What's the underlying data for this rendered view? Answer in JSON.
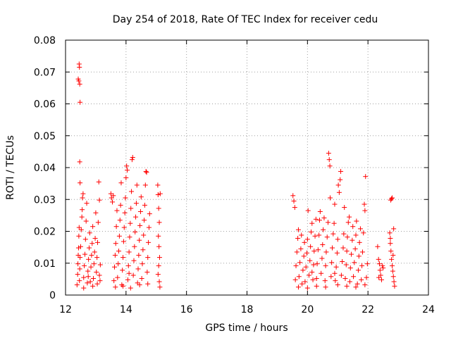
{
  "chart_data": {
    "type": "scatter",
    "title": "Day 254 of 2018, Rate Of TEC Index for receiver cedu",
    "xlabel": "GPS time / hours",
    "ylabel": "ROTI / TECUs",
    "xlim": [
      12,
      24
    ],
    "ylim": [
      0,
      0.08
    ],
    "xticks": [
      "12",
      "14",
      "16",
      "18",
      "20",
      "22",
      "24"
    ],
    "yticks": [
      "0",
      "0.01",
      "0.02",
      "0.03",
      "0.04",
      "0.05",
      "0.06",
      "0.07",
      "0.08"
    ],
    "grid": true,
    "marker": "+",
    "color": "#ff0000",
    "series": [
      {
        "name": "ROTI",
        "points": [
          [
            12.45,
            0.0725
          ],
          [
            12.46,
            0.0715
          ],
          [
            12.42,
            0.0678
          ],
          [
            12.44,
            0.0672
          ],
          [
            12.47,
            0.0662
          ],
          [
            12.48,
            0.0605
          ],
          [
            12.47,
            0.0418
          ],
          [
            12.48,
            0.0352
          ],
          [
            12.38,
            0.0032
          ],
          [
            12.4,
            0.0065
          ],
          [
            12.41,
            0.0098
          ],
          [
            12.42,
            0.0125
          ],
          [
            12.43,
            0.0148
          ],
          [
            12.44,
            0.0185
          ],
          [
            12.45,
            0.0212
          ],
          [
            12.46,
            0.0045
          ],
          [
            12.47,
            0.0082
          ],
          [
            12.48,
            0.0118
          ],
          [
            12.5,
            0.0152
          ],
          [
            12.52,
            0.0205
          ],
          [
            12.54,
            0.0245
          ],
          [
            12.55,
            0.0268
          ],
          [
            12.56,
            0.0305
          ],
          [
            12.58,
            0.0318
          ],
          [
            12.6,
            0.0055
          ],
          [
            12.62,
            0.0092
          ],
          [
            12.64,
            0.0128
          ],
          [
            12.66,
            0.0175
          ],
          [
            12.68,
            0.0232
          ],
          [
            12.7,
            0.0288
          ],
          [
            12.72,
            0.0038
          ],
          [
            12.74,
            0.0075
          ],
          [
            12.76,
            0.0112
          ],
          [
            12.78,
            0.0148
          ],
          [
            12.8,
            0.0195
          ],
          [
            12.82,
            0.0042
          ],
          [
            12.84,
            0.0088
          ],
          [
            12.86,
            0.0125
          ],
          [
            12.88,
            0.0162
          ],
          [
            12.9,
            0.0215
          ],
          [
            12.92,
            0.0052
          ],
          [
            12.94,
            0.0098
          ],
          [
            12.96,
            0.0135
          ],
          [
            12.98,
            0.0178
          ],
          [
            13.0,
            0.0258
          ],
          [
            13.02,
            0.0072
          ],
          [
            13.04,
            0.0118
          ],
          [
            13.06,
            0.0165
          ],
          [
            13.08,
            0.0228
          ],
          [
            13.1,
            0.0355
          ],
          [
            13.12,
            0.0298
          ],
          [
            13.14,
            0.0045
          ],
          [
            13.15,
            0.0095
          ],
          [
            12.6,
            0.0022
          ],
          [
            12.9,
            0.0028
          ],
          [
            13.05,
            0.0035
          ],
          [
            12.75,
            0.0058
          ],
          [
            13.12,
            0.0062
          ],
          [
            13.5,
            0.0318
          ],
          [
            13.52,
            0.0305
          ],
          [
            13.55,
            0.0292
          ],
          [
            13.58,
            0.0312
          ],
          [
            13.6,
            0.0045
          ],
          [
            13.62,
            0.0088
          ],
          [
            13.64,
            0.0125
          ],
          [
            13.66,
            0.0162
          ],
          [
            13.68,
            0.0215
          ],
          [
            13.7,
            0.0265
          ],
          [
            13.72,
            0.0055
          ],
          [
            13.74,
            0.0098
          ],
          [
            13.76,
            0.0138
          ],
          [
            13.78,
            0.0185
          ],
          [
            13.8,
            0.0235
          ],
          [
            13.82,
            0.0282
          ],
          [
            13.84,
            0.0352
          ],
          [
            13.86,
            0.0032
          ],
          [
            13.88,
            0.0078
          ],
          [
            13.9,
            0.0118
          ],
          [
            13.92,
            0.0168
          ],
          [
            13.94,
            0.0212
          ],
          [
            13.96,
            0.0258
          ],
          [
            13.98,
            0.0305
          ],
          [
            14.0,
            0.0368
          ],
          [
            14.02,
            0.0405
          ],
          [
            14.04,
            0.0392
          ],
          [
            14.06,
            0.0048
          ],
          [
            14.08,
            0.0092
          ],
          [
            14.1,
            0.0135
          ],
          [
            14.12,
            0.0182
          ],
          [
            14.14,
            0.0225
          ],
          [
            14.16,
            0.0272
          ],
          [
            14.18,
            0.0325
          ],
          [
            14.2,
            0.0425
          ],
          [
            14.22,
            0.0432
          ],
          [
            14.24,
            0.0062
          ],
          [
            14.26,
            0.0108
          ],
          [
            14.28,
            0.0152
          ],
          [
            14.3,
            0.0198
          ],
          [
            14.32,
            0.0245
          ],
          [
            14.34,
            0.0288
          ],
          [
            14.36,
            0.0345
          ],
          [
            14.38,
            0.0038
          ],
          [
            14.4,
            0.0082
          ],
          [
            14.42,
            0.0125
          ],
          [
            14.44,
            0.0172
          ],
          [
            14.46,
            0.0218
          ],
          [
            14.48,
            0.0262
          ],
          [
            14.5,
            0.0308
          ],
          [
            14.52,
            0.0052
          ],
          [
            14.54,
            0.0098
          ],
          [
            14.56,
            0.0142
          ],
          [
            14.58,
            0.0188
          ],
          [
            14.6,
            0.0235
          ],
          [
            14.62,
            0.0282
          ],
          [
            14.64,
            0.0345
          ],
          [
            14.66,
            0.0388
          ],
          [
            14.68,
            0.0385
          ],
          [
            14.7,
            0.0072
          ],
          [
            14.72,
            0.0118
          ],
          [
            14.74,
            0.0165
          ],
          [
            14.76,
            0.0212
          ],
          [
            14.78,
            0.0255
          ],
          [
            13.65,
            0.0025
          ],
          [
            13.9,
            0.0028
          ],
          [
            14.15,
            0.0022
          ],
          [
            14.45,
            0.0032
          ],
          [
            14.72,
            0.0035
          ],
          [
            14.1,
            0.0068
          ],
          [
            15.05,
            0.0345
          ],
          [
            15.06,
            0.0315
          ],
          [
            15.08,
            0.0272
          ],
          [
            15.1,
            0.0228
          ],
          [
            15.07,
            0.0185
          ],
          [
            15.09,
            0.0152
          ],
          [
            15.11,
            0.0118
          ],
          [
            15.08,
            0.0092
          ],
          [
            15.06,
            0.0065
          ],
          [
            15.1,
            0.0042
          ],
          [
            15.12,
            0.0025
          ],
          [
            15.13,
            0.0318
          ],
          [
            19.52,
            0.0312
          ],
          [
            19.55,
            0.0295
          ],
          [
            19.58,
            0.0275
          ],
          [
            19.6,
            0.0048
          ],
          [
            19.62,
            0.0092
          ],
          [
            19.65,
            0.0135
          ],
          [
            19.68,
            0.0178
          ],
          [
            19.7,
            0.0205
          ],
          [
            19.72,
            0.0058
          ],
          [
            19.75,
            0.0102
          ],
          [
            19.78,
            0.0145
          ],
          [
            19.8,
            0.0188
          ],
          [
            19.82,
            0.0035
          ],
          [
            19.85,
            0.0078
          ],
          [
            19.88,
            0.0122
          ],
          [
            19.9,
            0.0165
          ],
          [
            19.92,
            0.0042
          ],
          [
            19.95,
            0.0088
          ],
          [
            19.98,
            0.0132
          ],
          [
            20.0,
            0.0175
          ],
          [
            20.02,
            0.0265
          ],
          [
            20.05,
            0.0062
          ],
          [
            20.08,
            0.0108
          ],
          [
            20.1,
            0.0152
          ],
          [
            20.12,
            0.0198
          ],
          [
            20.15,
            0.0225
          ],
          [
            20.18,
            0.0048
          ],
          [
            20.2,
            0.0095
          ],
          [
            20.22,
            0.0138
          ],
          [
            20.25,
            0.0185
          ],
          [
            20.28,
            0.0238
          ],
          [
            20.3,
            0.0052
          ],
          [
            20.32,
            0.0098
          ],
          [
            20.35,
            0.0142
          ],
          [
            20.38,
            0.0188
          ],
          [
            20.4,
            0.0235
          ],
          [
            20.42,
            0.0262
          ],
          [
            20.45,
            0.0068
          ],
          [
            20.48,
            0.0115
          ],
          [
            20.5,
            0.0158
          ],
          [
            20.52,
            0.0205
          ],
          [
            20.55,
            0.0242
          ],
          [
            20.58,
            0.0045
          ],
          [
            20.6,
            0.0092
          ],
          [
            20.62,
            0.0135
          ],
          [
            20.65,
            0.0182
          ],
          [
            20.68,
            0.0228
          ],
          [
            20.7,
            0.0445
          ],
          [
            20.72,
            0.0425
          ],
          [
            20.74,
            0.0405
          ],
          [
            20.75,
            0.0305
          ],
          [
            20.78,
            0.0058
          ],
          [
            20.8,
            0.0102
          ],
          [
            20.82,
            0.0148
          ],
          [
            20.85,
            0.0192
          ],
          [
            20.88,
            0.0225
          ],
          [
            20.9,
            0.0285
          ],
          [
            20.92,
            0.0045
          ],
          [
            20.95,
            0.0088
          ],
          [
            20.98,
            0.0132
          ],
          [
            21.0,
            0.0175
          ],
          [
            21.02,
            0.0345
          ],
          [
            21.05,
            0.0322
          ],
          [
            21.08,
            0.0362
          ],
          [
            21.1,
            0.0388
          ],
          [
            21.12,
            0.0062
          ],
          [
            21.15,
            0.0105
          ],
          [
            21.18,
            0.0148
          ],
          [
            21.2,
            0.0192
          ],
          [
            21.22,
            0.0275
          ],
          [
            21.25,
            0.0052
          ],
          [
            21.28,
            0.0095
          ],
          [
            21.3,
            0.0138
          ],
          [
            21.32,
            0.0182
          ],
          [
            21.35,
            0.0228
          ],
          [
            21.38,
            0.0245
          ],
          [
            21.4,
            0.0042
          ],
          [
            21.42,
            0.0085
          ],
          [
            21.45,
            0.0128
          ],
          [
            21.48,
            0.0172
          ],
          [
            21.5,
            0.0215
          ],
          [
            21.52,
            0.0058
          ],
          [
            21.55,
            0.0102
          ],
          [
            21.58,
            0.0145
          ],
          [
            21.6,
            0.0188
          ],
          [
            21.62,
            0.0232
          ],
          [
            21.65,
            0.0035
          ],
          [
            21.68,
            0.0078
          ],
          [
            21.7,
            0.0122
          ],
          [
            21.72,
            0.0165
          ],
          [
            21.75,
            0.0208
          ],
          [
            21.78,
            0.0048
          ],
          [
            21.8,
            0.0092
          ],
          [
            21.82,
            0.0135
          ],
          [
            21.85,
            0.0195
          ],
          [
            21.88,
            0.0285
          ],
          [
            21.9,
            0.0265
          ],
          [
            21.92,
            0.0372
          ],
          [
            21.95,
            0.0055
          ],
          [
            21.98,
            0.0098
          ],
          [
            19.7,
            0.0025
          ],
          [
            20.0,
            0.0022
          ],
          [
            20.3,
            0.0028
          ],
          [
            20.6,
            0.0025
          ],
          [
            21.0,
            0.0032
          ],
          [
            21.3,
            0.0028
          ],
          [
            21.6,
            0.0025
          ],
          [
            21.9,
            0.0032
          ],
          [
            20.15,
            0.0072
          ],
          [
            20.9,
            0.0068
          ],
          [
            22.32,
            0.0152
          ],
          [
            22.35,
            0.0112
          ],
          [
            22.38,
            0.0098
          ],
          [
            22.4,
            0.0078
          ],
          [
            22.42,
            0.0062
          ],
          [
            22.45,
            0.0048
          ],
          [
            22.48,
            0.0092
          ],
          [
            22.5,
            0.0085
          ],
          [
            22.36,
            0.0055
          ],
          [
            22.75,
            0.0298
          ],
          [
            22.78,
            0.0302
          ],
          [
            22.8,
            0.0305
          ],
          [
            22.72,
            0.0195
          ],
          [
            22.74,
            0.0162
          ],
          [
            22.76,
            0.0138
          ],
          [
            22.78,
            0.0112
          ],
          [
            22.8,
            0.0092
          ],
          [
            22.82,
            0.0075
          ],
          [
            22.84,
            0.0058
          ],
          [
            22.86,
            0.0042
          ],
          [
            22.88,
            0.0028
          ],
          [
            22.85,
            0.0208
          ],
          [
            22.74,
            0.0178
          ],
          [
            22.83,
            0.0125
          ]
        ]
      }
    ]
  }
}
